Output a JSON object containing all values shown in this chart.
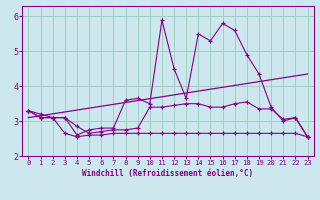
{
  "xlabel": "Windchill (Refroidissement éolien,°C)",
  "bg_color": "#cce8ee",
  "line_color": "#880088",
  "grid_color": "#99ccbb",
  "xlim": [
    -0.5,
    23.5
  ],
  "ylim": [
    2.0,
    6.3
  ],
  "xticks": [
    0,
    1,
    2,
    3,
    4,
    5,
    6,
    7,
    8,
    9,
    10,
    11,
    12,
    13,
    14,
    15,
    16,
    17,
    18,
    19,
    20,
    21,
    22,
    23
  ],
  "yticks": [
    2,
    3,
    4,
    5,
    6
  ],
  "series": {
    "line1": {
      "x": [
        0,
        1,
        2,
        3,
        4,
        5,
        6,
        7,
        8,
        9,
        10,
        11,
        12,
        13,
        14,
        15,
        16,
        17,
        18,
        19,
        20,
        21,
        22,
        23
      ],
      "y": [
        3.3,
        3.2,
        3.1,
        3.1,
        2.6,
        2.75,
        2.8,
        2.8,
        3.6,
        3.65,
        3.5,
        5.9,
        4.5,
        3.65,
        5.5,
        5.3,
        5.8,
        5.6,
        4.9,
        4.35,
        3.4,
        3.0,
        3.1,
        2.55
      ]
    },
    "line2": {
      "x": [
        0,
        1,
        2,
        3,
        4,
        5,
        6,
        7,
        8,
        9,
        10,
        11,
        12,
        13,
        14,
        15,
        16,
        17,
        18,
        19,
        20,
        21,
        22,
        23
      ],
      "y": [
        3.3,
        3.1,
        3.1,
        3.1,
        2.85,
        2.65,
        2.7,
        2.75,
        2.75,
        2.8,
        3.4,
        3.4,
        3.45,
        3.5,
        3.5,
        3.4,
        3.4,
        3.5,
        3.55,
        3.35,
        3.35,
        3.05,
        3.1,
        2.55
      ]
    },
    "line3": {
      "x": [
        0,
        1,
        2,
        3,
        4,
        5,
        6,
        7,
        8,
        9,
        10,
        11,
        12,
        13,
        14,
        15,
        16,
        17,
        18,
        19,
        20,
        21,
        22,
        23
      ],
      "y": [
        3.3,
        3.1,
        3.1,
        2.65,
        2.55,
        2.6,
        2.6,
        2.65,
        2.65,
        2.65,
        2.65,
        2.65,
        2.65,
        2.65,
        2.65,
        2.65,
        2.65,
        2.65,
        2.65,
        2.65,
        2.65,
        2.65,
        2.65,
        2.55
      ]
    },
    "line4_upper": {
      "x": [
        0,
        23
      ],
      "y": [
        3.1,
        4.35
      ]
    }
  }
}
